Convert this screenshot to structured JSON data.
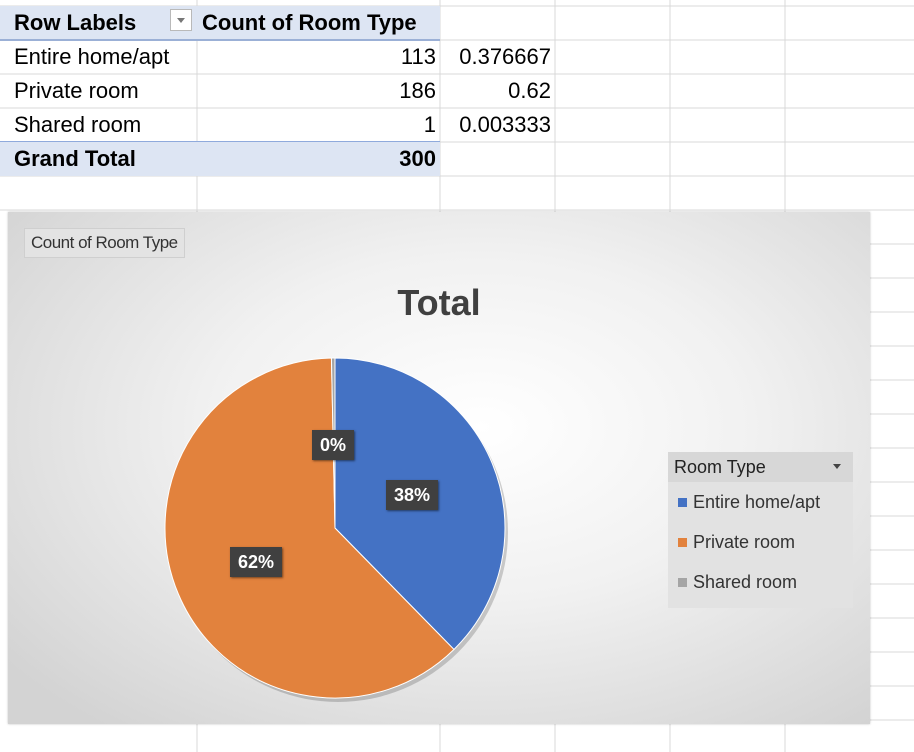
{
  "pivot": {
    "headers": {
      "row_labels": "Row Labels",
      "value_col": "Count of Room Type"
    },
    "rows": [
      {
        "label": "Entire home/apt",
        "count": "113",
        "share": "0.376667"
      },
      {
        "label": "Private room",
        "count": "186",
        "share": "0.62"
      },
      {
        "label": "Shared room",
        "count": "1",
        "share": "0.003333"
      }
    ],
    "total": {
      "label": "Grand Total",
      "count": "300"
    }
  },
  "chart": {
    "field_button": "Count of Room Type",
    "legend_title": "Room Type"
  },
  "chart_data": {
    "type": "pie",
    "title": "Total",
    "categories": [
      "Entire home/apt",
      "Private room",
      "Shared room"
    ],
    "values": [
      113,
      186,
      1
    ],
    "labels": [
      "38%",
      "62%",
      "0%"
    ],
    "colors": [
      "#4472c4",
      "#e2823d",
      "#a5a5a5"
    ],
    "legend": "right"
  }
}
